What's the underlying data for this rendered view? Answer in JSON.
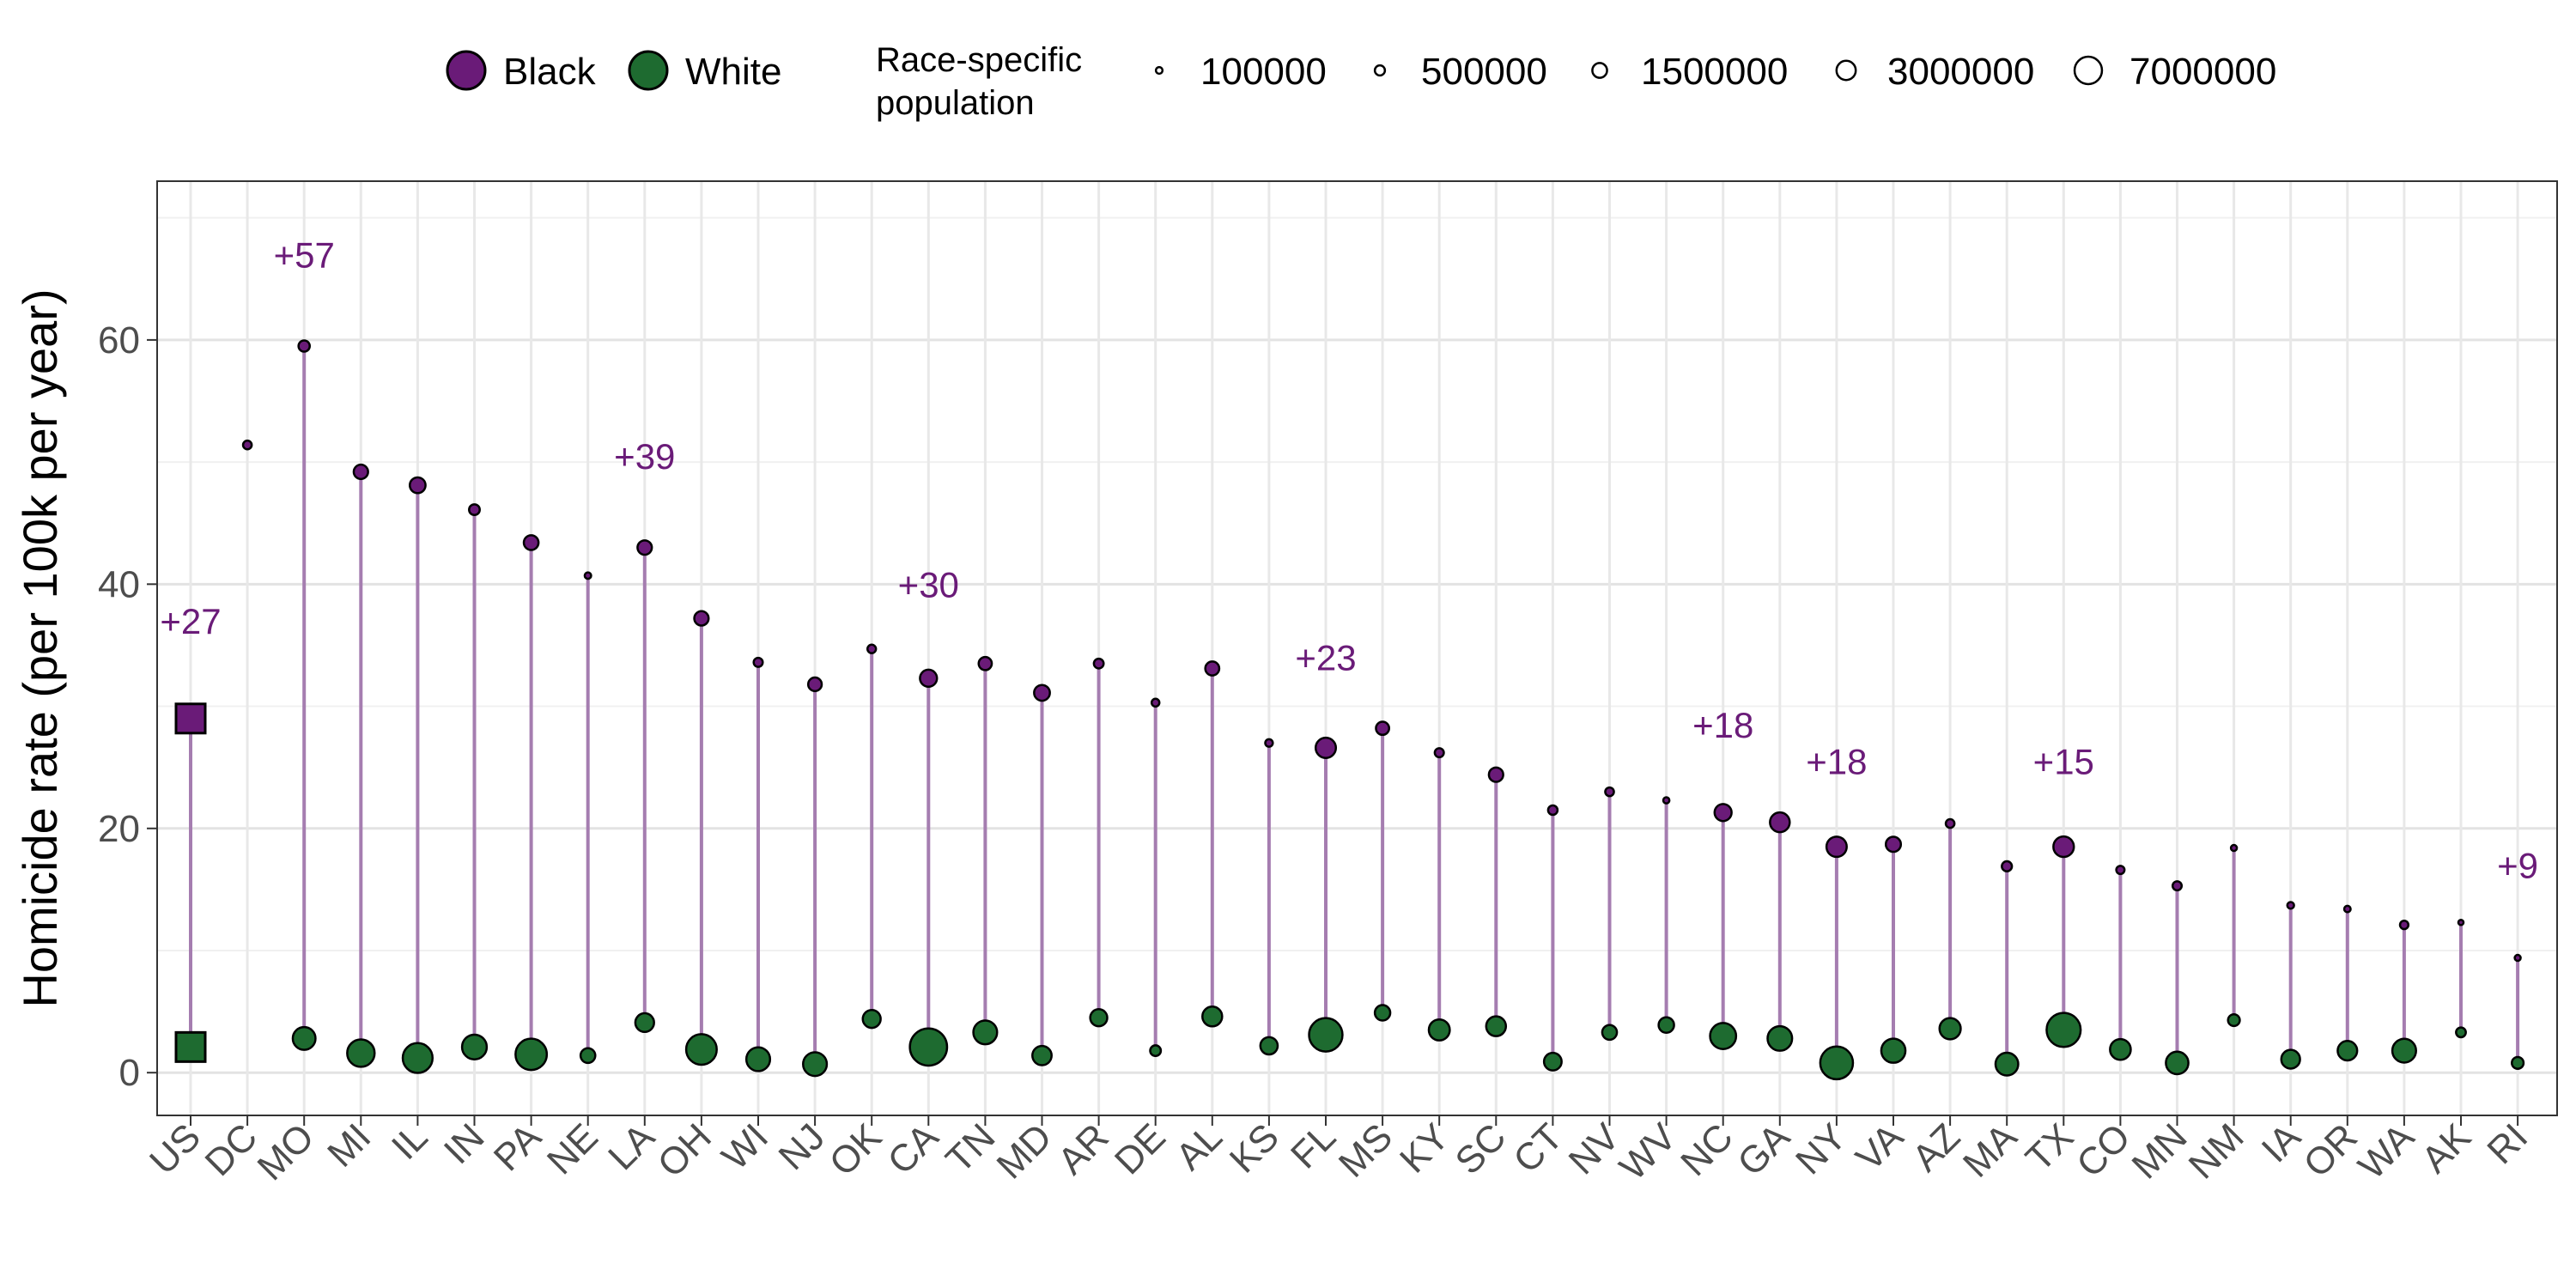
{
  "chart_data": {
    "type": "scatter",
    "ylabel": "Homicide rate (per 100k per year)",
    "ylim": [
      -3.5,
      73
    ],
    "yticks": [
      0,
      20,
      40,
      60
    ],
    "grid": true,
    "legend_placement": "top",
    "legend": {
      "race_entries": [
        "Black",
        "White"
      ],
      "size_title_line1": "Race-specific",
      "size_title_line2": "population",
      "size_entries": [
        "100000",
        "500000",
        "1500000",
        "3000000",
        "7000000"
      ],
      "size_values": [
        100000,
        500000,
        1500000,
        3000000,
        7000000
      ]
    },
    "colors": {
      "black": "#6a1b78",
      "white": "#1e6b30",
      "segment": "#a57db0",
      "annotation": "#6a1b78"
    },
    "categories": [
      "US",
      "DC",
      "MO",
      "MI",
      "IL",
      "IN",
      "PA",
      "NE",
      "LA",
      "OH",
      "WI",
      "NJ",
      "OK",
      "CA",
      "TN",
      "MD",
      "AR",
      "DE",
      "AL",
      "KS",
      "FL",
      "MS",
      "KY",
      "SC",
      "CT",
      "NV",
      "WV",
      "NC",
      "GA",
      "NY",
      "VA",
      "AZ",
      "MA",
      "TX",
      "CO",
      "MN",
      "NM",
      "IA",
      "OR",
      "WA",
      "AK",
      "RI"
    ],
    "series": [
      {
        "name": "Black",
        "values": [
          29.0,
          51.4,
          59.5,
          49.2,
          48.1,
          46.1,
          43.4,
          40.7,
          43.0,
          37.2,
          33.6,
          31.8,
          34.7,
          32.3,
          33.5,
          31.1,
          33.5,
          30.3,
          33.1,
          27.0,
          26.6,
          28.2,
          26.2,
          24.4,
          21.5,
          23.0,
          22.3,
          21.3,
          20.5,
          18.5,
          18.7,
          20.4,
          16.9,
          18.5,
          16.6,
          15.3,
          18.4,
          13.7,
          13.4,
          12.1,
          12.3,
          9.4
        ],
        "populations": [
          40000000,
          300000,
          700000,
          1400000,
          1800000,
          600000,
          1500000,
          90000,
          1400000,
          1400000,
          350000,
          1200000,
          280000,
          2200000,
          1100000,
          1800000,
          450000,
          200000,
          1300000,
          180000,
          3400000,
          1100000,
          350000,
          1400000,
          400000,
          300000,
          70000,
          2200000,
          3200000,
          3400000,
          1600000,
          300000,
          500000,
          3500000,
          250000,
          350000,
          60000,
          110000,
          90000,
          270000,
          25000,
          60000
        ]
      },
      {
        "name": "White",
        "values": [
          2.1,
          null,
          2.8,
          1.6,
          1.2,
          2.1,
          1.5,
          1.4,
          4.1,
          1.9,
          1.1,
          0.7,
          4.4,
          2.1,
          3.3,
          1.4,
          4.5,
          1.8,
          4.6,
          2.2,
          3.1,
          4.9,
          3.5,
          3.8,
          0.9,
          3.3,
          3.9,
          3.0,
          2.8,
          0.8,
          1.8,
          3.6,
          0.7,
          3.5,
          1.9,
          0.8,
          4.3,
          1.1,
          1.8,
          1.8,
          3.3,
          0.8
        ]
      }
    ],
    "white_populations": [
      200000000,
      null,
      4500000,
      7000000,
      8500000,
      5500000,
      9500000,
      1500000,
      2800000,
      9000000,
      5000000,
      5000000,
      2500000,
      14000000,
      5000000,
      3000000,
      2200000,
      600000,
      3200000,
      2300000,
      11000000,
      1700000,
      3700000,
      3200000,
      2400000,
      1500000,
      1700000,
      6200000,
      5400000,
      10500000,
      5200000,
      3800000,
      4500000,
      11500000,
      3600000,
      4400000,
      800000,
      2800000,
      3100000,
      5000000,
      450000,
      800000
    ],
    "annotations": [
      {
        "category": "US",
        "text": "+27",
        "y": 37
      },
      {
        "category": "MO",
        "text": "+57",
        "y": 67
      },
      {
        "category": "LA",
        "text": "+39",
        "y": 50.5
      },
      {
        "category": "CA",
        "text": "+30",
        "y": 40
      },
      {
        "category": "FL",
        "text": "+23",
        "y": 34
      },
      {
        "category": "NC",
        "text": "+18",
        "y": 28.5
      },
      {
        "category": "NY",
        "text": "+18",
        "y": 25.5
      },
      {
        "category": "TX",
        "text": "+15",
        "y": 25.5
      },
      {
        "category": "RI",
        "text": "+9",
        "y": 17
      }
    ],
    "us_marker": "square"
  }
}
